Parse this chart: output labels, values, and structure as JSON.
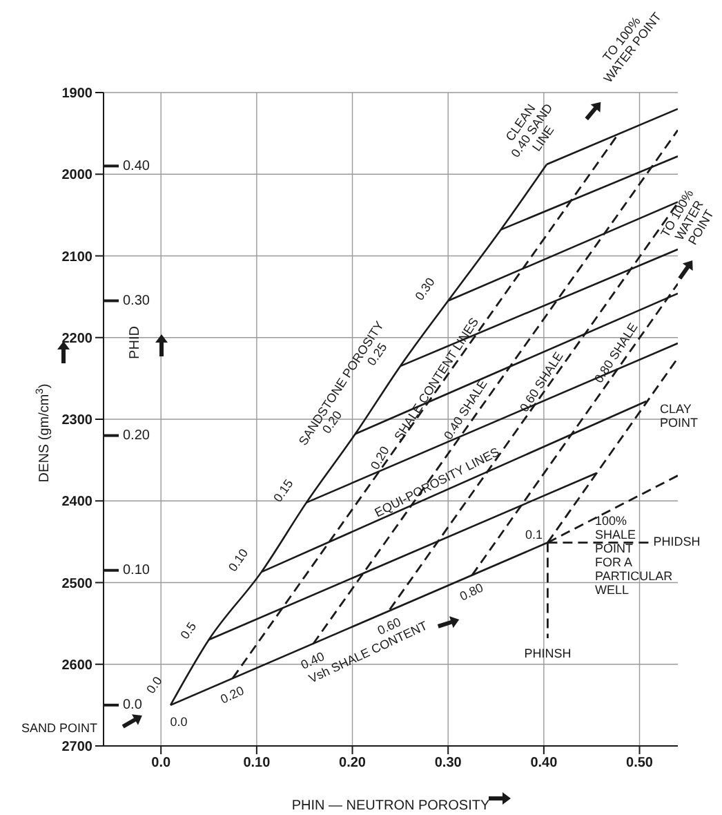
{
  "chart_data": {
    "type": "line",
    "xlabel": "PHIN — NEUTRON POROSITY",
    "ylabel": "DENS (gm/cm$^{3}$)",
    "y2label": "PHID",
    "xlim": [
      -0.06,
      0.54
    ],
    "xticks": [
      {
        "value": 0,
        "label": "0.0"
      },
      {
        "value": 0.1,
        "label": "0.10"
      },
      {
        "value": 0.2,
        "label": "0.20"
      },
      {
        "value": 0.3,
        "label": "0.30"
      },
      {
        "value": 0.4,
        "label": "0.40"
      },
      {
        "value": 0.5,
        "label": "0.50"
      }
    ],
    "ylim": [
      2700,
      1900
    ],
    "yticks": [
      1900,
      2000,
      2100,
      2200,
      2300,
      2400,
      2500,
      2600,
      2700
    ],
    "y2lim": [
      -0.0303,
      0.4545
    ],
    "y2ticks": [
      {
        "value": 0,
        "label": "0.0"
      },
      {
        "value": 0.1,
        "label": "0.10"
      },
      {
        "value": 0.2,
        "label": "0.20"
      },
      {
        "value": 0.3,
        "label": "0.30"
      },
      {
        "value": 0.4,
        "label": "0.40"
      }
    ],
    "grid": true,
    "marker": "none",
    "line_style": "solid",
    "series": [
      {
        "color": "#1a1a1a",
        "x": [
          0.01,
          0.05,
          0.105,
          0.152,
          0.203,
          0.25,
          0.3,
          0.355,
          0.403
        ],
        "values": [
          2650,
          2570,
          2487,
          2402,
          2318,
          2235,
          2155,
          2068,
          1988
        ]
      },
      {
        "color": "#1a1a1a",
        "x": [
          0.01,
          0.404
        ],
        "values": [
          2650,
          2451
        ]
      },
      {
        "color": "#1a1a1a",
        "x": [
          0.05,
          0.455
        ],
        "values": [
          2570,
          2366
        ]
      },
      {
        "color": "#1a1a1a",
        "x": [
          0.105,
          0.507
        ],
        "values": [
          2487,
          2278
        ]
      },
      {
        "color": "#1a1a1a",
        "x": [
          0.152,
          0.54
        ],
        "values": [
          2402,
          2207
        ]
      },
      {
        "color": "#1a1a1a",
        "x": [
          0.203,
          0.54
        ],
        "values": [
          2318,
          2146
        ]
      },
      {
        "color": "#1a1a1a",
        "x": [
          0.25,
          0.54
        ],
        "values": [
          2235,
          2092
        ]
      },
      {
        "color": "#1a1a1a",
        "x": [
          0.3,
          0.54
        ],
        "values": [
          2155,
          2034
        ]
      },
      {
        "color": "#1a1a1a",
        "x": [
          0.355,
          0.54
        ],
        "values": [
          2068,
          1978
        ]
      },
      {
        "color": "#1a1a1a",
        "x": [
          0.403,
          0.54
        ],
        "values": [
          1988,
          1920
        ]
      },
      {
        "color": "#1a1a1a",
        "line_style": "dashed",
        "x": [
          0.075,
          0.477
        ],
        "values": [
          2617,
          1952
        ]
      },
      {
        "color": "#1a1a1a",
        "line_style": "dashed",
        "x": [
          0.159,
          0.54
        ],
        "values": [
          2575,
          1946
        ]
      },
      {
        "color": "#1a1a1a",
        "line_style": "dashed",
        "x": [
          0.239,
          0.54
        ],
        "values": [
          2533,
          2035
        ]
      },
      {
        "color": "#1a1a1a",
        "line_style": "dashed",
        "x": [
          0.325,
          0.54
        ],
        "values": [
          2491,
          2134
        ]
      },
      {
        "color": "#1a1a1a",
        "line_style": "dashed",
        "x": [
          0.404,
          0.54
        ],
        "values": [
          2451,
          2225
        ]
      },
      {
        "color": "#1a1a1a",
        "line_style": "dashed",
        "x": [
          0.404,
          0.54
        ],
        "values": [
          2451,
          2369
        ]
      },
      {
        "color": "#1a1a1a",
        "line_style": "dashed",
        "x": [
          0.404,
          0.51
        ],
        "values": [
          2451,
          2451
        ]
      },
      {
        "color": "#1a1a1a",
        "line_style": "dashed",
        "x": [
          0.404,
          0.404
        ],
        "values": [
          2451,
          2568
        ]
      }
    ],
    "annotations": [
      "TO 100% WATER POINT",
      "TO 100% WATER POINT",
      "CLAY POINT",
      "SANDSTONE POROSITY",
      "SHALE CONTENT LINES",
      "0.40 SHALE",
      "0.60 SHALE",
      "0.80 SHALE",
      "EQUI-POROSITY LINES",
      "Vsh SHALE CONTENT",
      "0.20",
      {
        "text": "0.0",
        "x": 0.01,
        "y": 2650
      },
      {
        "text": "0.5",
        "x": 0.05,
        "y": 2570
      },
      {
        "text": "0.10",
        "x": 0.105,
        "y": 2487
      },
      {
        "text": "0.15",
        "x": 0.152,
        "y": 2402
      },
      {
        "text": "0.20",
        "x": 0.203,
        "y": 2318
      },
      {
        "text": "0.25",
        "x": 0.25,
        "y": 2235
      },
      {
        "text": "0.30",
        "x": 0.3,
        "y": 2155
      },
      {
        "text": "CLEAN 0.40 SAND LINE",
        "x": 0.403,
        "y": 1988
      },
      "SAND POINT",
      {
        "text": "0.0",
        "x": 0.01,
        "y": 2650
      },
      {
        "text": "0.20",
        "x": 0.075,
        "y": 2617
      },
      {
        "text": "0.40",
        "x": 0.159,
        "y": 2575
      },
      {
        "text": "0.60",
        "x": 0.239,
        "y": 2533
      },
      {
        "text": "0.80",
        "x": 0.325,
        "y": 2491
      },
      {
        "text": "0.1",
        "x": 0.404,
        "y": 2451
      },
      "100% SHALE POINT FOR A PARTICULAR WELL",
      {
        "text": "PHIDSH",
        "x": 0.51,
        "y": 2451
      },
      {
        "text": "PHINSH",
        "x": 0.404,
        "y": 2568
      }
    ]
  }
}
